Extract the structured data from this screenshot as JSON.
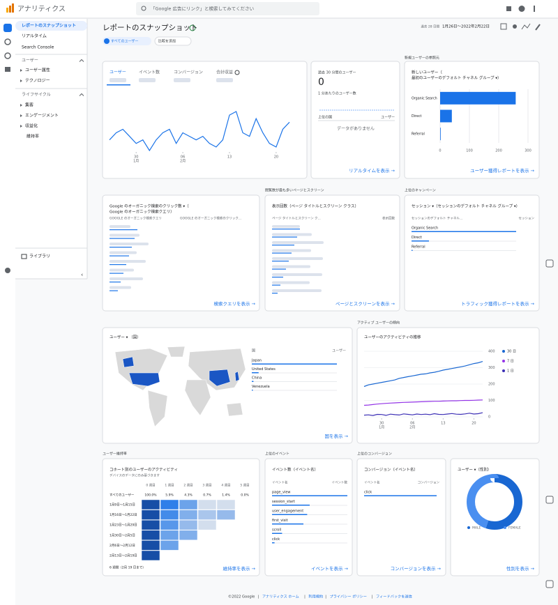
{
  "top_bar": {
    "product": "アナリティクス",
    "search": "「Google 広告にリンク」と検索してみてください"
  },
  "sidebar": {
    "items": [
      "レポートのスナップショット",
      "リアルタイム",
      "Search Console"
    ],
    "sections": [
      {
        "title": "ユーザー",
        "items": [
          "ユーザー属性",
          "テクノロジー"
        ]
      },
      {
        "title": "ライフサイクル",
        "items": [
          "集客",
          "エンゲージメント",
          "収益化",
          "維持率"
        ]
      }
    ],
    "library": "ライブラリ"
  },
  "header": {
    "title": "レポートのスナップショット",
    "segment": "すべてのユーザー",
    "compare": "比較を追加",
    "period_label": "過去 28 日間",
    "date_range": "1月26日～2022年2月22日"
  },
  "section_titles": {
    "new_users": "新規ユーザーの参照元",
    "top_pages": "閲覧数が最も多いページとスクリーン",
    "campaigns": "上位のキャンペーン",
    "active_trend": "アクティブ ユーザーの傾向",
    "retention": "ユーザー維持率",
    "events": "上位のイベント",
    "conversions": "上位のコンバージョン"
  },
  "chart_data": [
    {
      "type": "line",
      "tabs": [
        "ユーザー",
        "イベント数",
        "コンバージョン",
        "合計収益"
      ],
      "color": "#1a73e8",
      "values": [
        30,
        40,
        45,
        35,
        25,
        30,
        15,
        30,
        40,
        45,
        25,
        40,
        35,
        30,
        35,
        25,
        20,
        30,
        65,
        70,
        40,
        35,
        60,
        40,
        25,
        20,
        45,
        55
      ],
      "xticks": [
        {
          "value": 4,
          "label": "30",
          "sublabel": "1月"
        },
        {
          "value": 11,
          "label": "06",
          "sublabel": "2月"
        },
        {
          "value": 18,
          "label": "13"
        },
        {
          "value": 25,
          "label": "20"
        }
      ]
    },
    {
      "type": "bar",
      "orientation": "horizontal",
      "title_lines": [
        "新しいユーザー（",
        "最初のユーザーのデフォルト チャネル グループ ▾）"
      ],
      "categories": [
        "Organic Search",
        "Direct",
        "Referral"
      ],
      "values": [
        258,
        40,
        2
      ],
      "color": "#1a73e8",
      "xlim": [
        0,
        300
      ],
      "xticks": [
        0,
        100,
        200,
        300
      ],
      "grid": true,
      "link": "ユーザー獲得レポートを表示 →"
    },
    {
      "type": "map",
      "title": "ユーザー ▾ （国）",
      "columns": [
        "国",
        "ユーザー"
      ],
      "categories": [
        "Japan",
        "United States",
        "China",
        "Venezuela"
      ],
      "values": [
        250,
        20,
        5,
        3
      ],
      "color": "#1a73e8",
      "link": "国を表示 →"
    },
    {
      "type": "line",
      "title": "ユーザーのアクティビティの推移",
      "legend": "right",
      "series": [
        {
          "name": "30 日",
          "color": "#1967d2",
          "axis": "y2",
          "values": [
            185,
            195,
            200,
            205,
            210,
            215,
            220,
            225,
            235,
            240,
            245,
            250,
            255,
            260,
            262,
            268,
            272,
            278,
            285,
            290,
            295,
            300,
            305,
            310,
            318,
            325,
            330,
            338
          ]
        },
        {
          "name": "7 日",
          "color": "#9334e6",
          "axis": "y2",
          "values": [
            70,
            72,
            75,
            78,
            80,
            82,
            84,
            85,
            87,
            88,
            89,
            90,
            91,
            92,
            93,
            94,
            95,
            95,
            96,
            97,
            98,
            98,
            99,
            100,
            100,
            101,
            102,
            103
          ]
        },
        {
          "name": "1 日",
          "color": "#3c2fb5",
          "axis": "y2",
          "values": [
            10,
            12,
            8,
            15,
            14,
            9,
            16,
            13,
            11,
            18,
            15,
            12,
            17,
            14,
            16,
            13,
            19,
            15,
            14,
            17,
            20,
            16,
            15,
            18,
            22,
            17,
            19,
            25
          ]
        }
      ],
      "y2lim": [
        0,
        400
      ],
      "y2ticks": [
        0,
        100,
        200,
        300,
        400
      ],
      "grid": true,
      "xticks": [
        {
          "value": 4,
          "label": "30",
          "sublabel": "1月"
        },
        {
          "value": 11,
          "label": "06",
          "sublabel": "2月"
        },
        {
          "value": 18,
          "label": "13"
        },
        {
          "value": 25,
          "label": "20"
        }
      ]
    },
    {
      "type": "heatmap",
      "title": "コホート別のユーザーのアクティビティ",
      "subtitle": "デバイスのデータにのみ基づきます",
      "columns": [
        "0 週目",
        "1 週目",
        "2 週目",
        "3 週目",
        "4 週目",
        "5 週目"
      ],
      "total_label": "すべてのユーザー",
      "total_values": [
        100,
        5.9,
        4.3,
        0.7,
        1.4,
        0
      ],
      "total_value_labels": [
        "100.0%",
        "5.9%",
        "4.3%",
        "0.7%",
        "1.4%",
        "0.0%"
      ],
      "rows": [
        "1月9日～1月15日",
        "1月16日～1月22日",
        "1月23日～1月29日",
        "1月30日～2月5日",
        "2月6日～2月12日",
        "2月13日～2月19日"
      ],
      "values": [
        [
          100,
          9,
          6,
          1,
          1
        ],
        [
          100,
          8,
          5,
          3,
          4
        ],
        [
          100,
          7,
          4,
          1
        ],
        [
          100,
          6,
          5
        ],
        [
          100,
          6
        ],
        [
          100
        ]
      ],
      "footnote": "6 週間（2月 19 日まで）",
      "link": "維持率を表示 →"
    },
    {
      "type": "pie",
      "donut": true,
      "title": "ユーザー ▾（性別）",
      "categories": [
        "MALE",
        "FEMALE"
      ],
      "values": [
        55,
        45
      ],
      "colors": [
        "#1967d2",
        "#4a8ff0"
      ],
      "link": "性別を表示 →"
    }
  ],
  "realtime": {
    "title": "過去 30 分間のユーザー",
    "value": "0",
    "subtitle": "1 分あたりのユーザー数",
    "columns": [
      "上位の国",
      "ユーザー"
    ],
    "empty": "データがありません",
    "link": "リアルタイムを表示 →"
  },
  "search_queries": {
    "title_lines": [
      "Google のオーガニック検索のクリック数 ▾（",
      "Google のオーガニック検索クエリ）"
    ],
    "columns": [
      "GOOGLE のオーガニック検索クエリ",
      "GOOGLE のオーガニック検索のクリック..."
    ],
    "link": "検索クエリを表示 →"
  },
  "pages": {
    "title": "表示回数（ページ タイトルとスクリーン クラス）",
    "columns": [
      "ページ タイトルとスクリーン ク...",
      "表示回数"
    ],
    "link": "ページとスクリーンを表示 →"
  },
  "campaigns": {
    "title": "セッション ▾（セッションのデフォルト チャネル グループ ▾）",
    "columns": [
      "セッションのデフォルト チャネル...",
      "セッション"
    ],
    "rows": [
      "Organic Search",
      "Direct",
      "Referral"
    ],
    "values": [
      300,
      50,
      3
    ],
    "color": "#1a73e8",
    "link": "トラフィック獲得レポートを表示 →"
  },
  "events": {
    "title": "イベント数（イベント名）",
    "columns": [
      "イベント名",
      "イベント数"
    ],
    "rows": [
      "page_view",
      "session_start",
      "user_engagement",
      "first_visit",
      "scroll",
      "click"
    ],
    "values": [
      600,
      300,
      280,
      250,
      80,
      20
    ],
    "color": "#1a73e8",
    "link": "イベントを表示 →"
  },
  "conversions": {
    "title": "コンバージョン（イベント名）",
    "columns": [
      "イベント名",
      "コンバージョン"
    ],
    "rows": [
      "click"
    ],
    "values": [
      20
    ],
    "color": "#1a73e8",
    "link": "コンバージョンを表示 →"
  },
  "footer": {
    "copyright": "©2022 Google",
    "separator": "|",
    "links": [
      "アナリティクス ホーム",
      "利用規約",
      "プライバシー ポリシー",
      "フィードバックを送信"
    ]
  }
}
